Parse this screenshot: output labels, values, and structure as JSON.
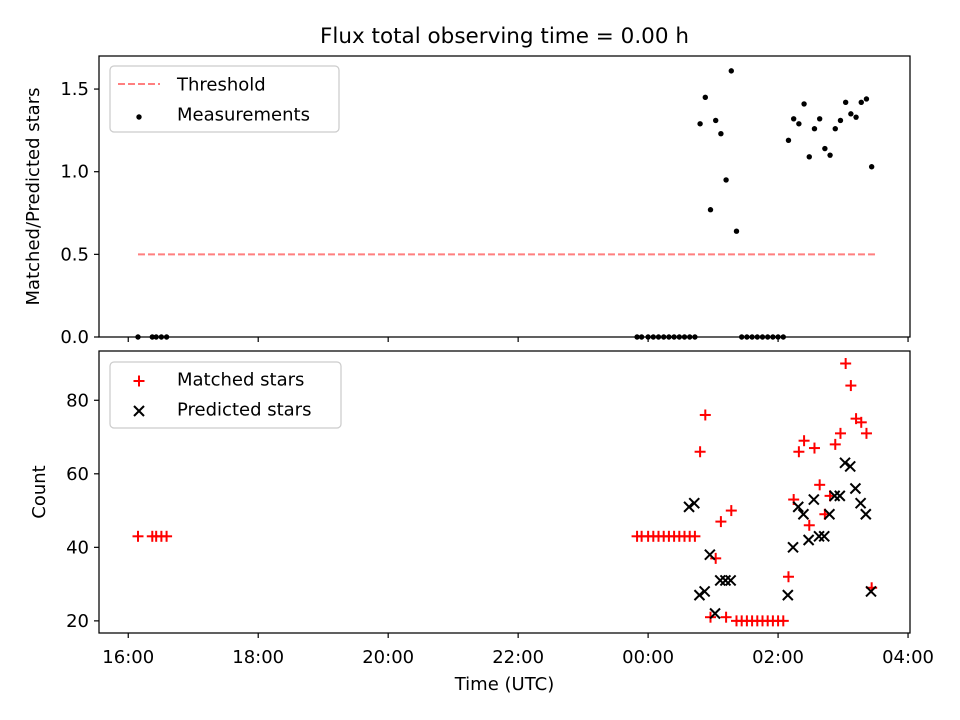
{
  "chart_data": {
    "title": "Flux total observing time = 0.00 h",
    "x_tick_labels": [
      "16:00",
      "18:00",
      "20:00",
      "22:00",
      "00:00",
      "02:00",
      "04:00"
    ],
    "x_ticks_hours": [
      16,
      18,
      20,
      22,
      24,
      26,
      28
    ],
    "xlabel": "Time (UTC)",
    "xlim_hours": [
      15.55,
      28.03
    ],
    "panels": [
      {
        "type": "scatter",
        "ylabel": "Matched/Predicted stars",
        "ylim": [
          0,
          1.7
        ],
        "y_ticks": [
          0.0,
          0.5,
          1.0,
          1.5
        ],
        "y_tick_labels": [
          "0.0",
          "0.5",
          "1.0",
          "1.5"
        ],
        "legend_position": "top-left",
        "threshold": {
          "name": "Threshold",
          "value": 0.5,
          "x_range_hours": [
            16.15,
            27.5
          ],
          "color": "#ff7f7f"
        },
        "series": [
          {
            "name": "Measurements",
            "color": "#000000",
            "x_hours": [
              16.15,
              16.37,
              16.43,
              16.51,
              16.59,
              23.83,
              23.9,
              24.0,
              24.08,
              24.16,
              24.24,
              24.32,
              24.4,
              24.48,
              24.56,
              24.64,
              24.72,
              24.8,
              24.88,
              24.96,
              25.04,
              25.12,
              25.2,
              25.28,
              25.36,
              25.44,
              25.52,
              25.6,
              25.68,
              25.76,
              25.84,
              25.92,
              26.0,
              26.08,
              26.16,
              26.24,
              26.32,
              26.4,
              26.48,
              26.56,
              26.64,
              26.72,
              26.8,
              26.88,
              26.96,
              27.04,
              27.12,
              27.2,
              27.28,
              27.36,
              27.44
            ],
            "y": [
              0,
              0,
              0,
              0,
              0,
              0,
              0,
              0,
              0,
              0,
              0,
              0,
              0,
              0,
              0,
              0,
              0,
              1.29,
              1.45,
              0.77,
              1.31,
              1.23,
              0.95,
              1.61,
              0.64,
              0,
              0,
              0,
              0,
              0,
              0,
              0,
              0,
              0,
              1.19,
              1.32,
              1.29,
              1.41,
              1.09,
              1.26,
              1.32,
              1.14,
              1.1,
              1.26,
              1.31,
              1.42,
              1.35,
              1.33,
              1.42,
              1.44,
              1.03
            ]
          }
        ]
      },
      {
        "type": "scatter",
        "ylabel": "Count",
        "ylim": [
          16.7,
          93.4
        ],
        "y_ticks": [
          20,
          40,
          60,
          80
        ],
        "y_tick_labels": [
          "20",
          "40",
          "60",
          "80"
        ],
        "legend_position": "top-left",
        "series": [
          {
            "name": "Matched stars",
            "marker": "+",
            "color": "#ff0000",
            "x_hours": [
              16.15,
              16.37,
              16.43,
              16.51,
              16.59,
              23.83,
              23.9,
              24.0,
              24.08,
              24.16,
              24.24,
              24.32,
              24.4,
              24.48,
              24.56,
              24.64,
              24.72,
              24.8,
              24.88,
              24.96,
              25.04,
              25.12,
              25.2,
              25.28,
              25.36,
              25.44,
              25.52,
              25.6,
              25.68,
              25.76,
              25.84,
              25.92,
              26.0,
              26.08,
              26.16,
              26.24,
              26.32,
              26.4,
              26.48,
              26.56,
              26.64,
              26.72,
              26.8,
              26.88,
              26.96,
              27.04,
              27.12,
              27.2,
              27.28,
              27.36,
              27.44
            ],
            "y": [
              43,
              43,
              43,
              43,
              43,
              43,
              43,
              43,
              43,
              43,
              43,
              43,
              43,
              43,
              43,
              43,
              43,
              66,
              76,
              21,
              37,
              47,
              21,
              50,
              20,
              20,
              20,
              20,
              20,
              20,
              20,
              20,
              20,
              20,
              32,
              53,
              66,
              69,
              46,
              67,
              57,
              49,
              54,
              68,
              71,
              90,
              84,
              75,
              74,
              71,
              29
            ]
          },
          {
            "name": "Predicted stars",
            "marker": "x",
            "color": "#000000",
            "x_hours": [
              24.63,
              24.71,
              24.79,
              24.87,
              24.95,
              25.03,
              25.11,
              25.19,
              25.27,
              26.15,
              26.23,
              26.31,
              26.39,
              26.47,
              26.55,
              26.63,
              26.71,
              26.79,
              26.87,
              26.95,
              27.03,
              27.11,
              27.19,
              27.27,
              27.35,
              27.43
            ],
            "y": [
              51,
              52,
              27,
              28,
              38,
              22,
              31,
              31,
              31,
              27,
              40,
              51,
              49,
              42,
              53,
              43,
              43,
              49,
              54,
              54,
              63,
              62,
              56,
              52,
              49,
              28
            ]
          }
        ]
      }
    ]
  }
}
